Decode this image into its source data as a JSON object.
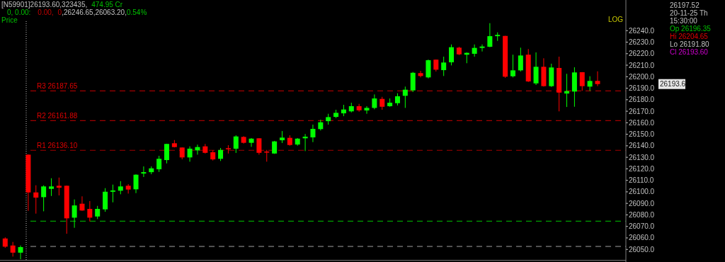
{
  "chart_data": {
    "type": "candlestick",
    "categories": [
      null,
      null,
      null,
      null,
      null,
      null,
      null,
      null,
      null,
      null,
      null,
      null,
      null,
      null,
      null,
      null,
      null,
      null,
      null,
      null,
      null,
      null,
      null,
      null,
      null,
      null,
      null,
      null,
      null,
      null,
      null,
      null,
      null,
      null,
      null,
      null,
      null,
      null,
      null,
      null,
      null,
      null,
      null,
      null,
      null,
      null,
      null,
      null,
      null,
      null,
      null,
      null,
      null,
      null,
      null,
      null,
      null,
      null,
      null,
      null,
      null,
      null,
      null,
      null,
      null,
      null,
      null,
      null,
      null,
      null,
      null,
      null,
      null,
      null,
      null,
      null,
      null,
      null
    ],
    "ohlc": [
      [
        26059.5,
        26060.5,
        26051.4,
        26052.4
      ],
      [
        26053.4,
        26056.5,
        26043.8,
        26047.2
      ],
      [
        26047.2,
        26053.4,
        26041.5,
        26052.0
      ],
      [
        26132.3,
        26132.5,
        26083.5,
        26099.5
      ],
      [
        26099.5,
        26105.7,
        26081.1,
        26095.0
      ],
      [
        26095.4,
        26105.7,
        26083.1,
        26104.7
      ],
      [
        26102.6,
        26111.8,
        26096.4,
        26104.7
      ],
      [
        26105.3,
        26112.4,
        26096.9,
        26103.6
      ],
      [
        26105.3,
        26105.5,
        26063.6,
        26077.0
      ],
      [
        26077.6,
        26093.4,
        26068.8,
        26088.2
      ],
      [
        26089.7,
        26096.1,
        26083.5,
        26083.8
      ],
      [
        26085.2,
        26092.0,
        26074.3,
        26077.6
      ],
      [
        26078.6,
        26087.8,
        26076.4,
        26085.2
      ],
      [
        26084.8,
        26103.2,
        26082.7,
        26100.1
      ],
      [
        26100.1,
        26106.3,
        26090.9,
        26101.2
      ],
      [
        26101.0,
        26109.3,
        26097.9,
        26104.7
      ],
      [
        26105.3,
        26106.7,
        26098.5,
        26102.0
      ],
      [
        26102.2,
        26115.2,
        26098.9,
        26114.9
      ],
      [
        26115.9,
        26122.1,
        26112.9,
        26117.1
      ],
      [
        26117.1,
        26122.1,
        26115.3,
        26120.4
      ],
      [
        26119.6,
        26131.3,
        26117.3,
        26128.7
      ],
      [
        26127.6,
        26141.8,
        26124.7,
        26141.6
      ],
      [
        26142.2,
        26145.0,
        26138.6,
        26138.9
      ],
      [
        26138.5,
        26138.6,
        26128.2,
        26129.9
      ],
      [
        26129.9,
        26139.5,
        26126.2,
        26137.5
      ],
      [
        26136.0,
        26141.0,
        26132.3,
        26138.9
      ],
      [
        26139.5,
        26141.6,
        26133.3,
        26133.9
      ],
      [
        26134.4,
        26136.0,
        26127.2,
        26128.2
      ],
      [
        26128.7,
        26138.1,
        26126.8,
        26136.4
      ],
      [
        26137.9,
        26140.5,
        26133.3,
        26137.0
      ],
      [
        26137.5,
        26149.1,
        26133.8,
        26148.1
      ],
      [
        26147.7,
        26148.3,
        26141.9,
        26142.6
      ],
      [
        26142.6,
        26146.7,
        26139.1,
        26146.2
      ],
      [
        26146.5,
        26146.6,
        26132.3,
        26133.9
      ],
      [
        26135.0,
        26136.4,
        26126.2,
        26134.2
      ],
      [
        26133.3,
        26144.2,
        26133.0,
        26143.8
      ],
      [
        26144.8,
        26152.8,
        26142.4,
        26147.1
      ],
      [
        26146.9,
        26149.1,
        26140.1,
        26140.7
      ],
      [
        26141.1,
        26146.7,
        26140.1,
        26146.2
      ],
      [
        26146.5,
        26150.2,
        26135.4,
        26147.9
      ],
      [
        26147.3,
        26158.4,
        26143.2,
        26154.7
      ],
      [
        26154.5,
        26162.7,
        26153.3,
        26160.4
      ],
      [
        26161.4,
        26167.8,
        26158.4,
        26164.9
      ],
      [
        26165.1,
        26171.3,
        26164.1,
        26168.6
      ],
      [
        26168.2,
        26175.6,
        26165.7,
        26171.5
      ],
      [
        26169.9,
        26177.4,
        26169.0,
        26174.4
      ],
      [
        26174.4,
        26176.4,
        26169.6,
        26170.8
      ],
      [
        26170.7,
        26174.4,
        26167.8,
        26172.9
      ],
      [
        26172.9,
        26184.6,
        26171.7,
        26181.1
      ],
      [
        26180.7,
        26182.5,
        26171.3,
        26173.9
      ],
      [
        26174.4,
        26181.1,
        26173.9,
        26177.4
      ],
      [
        26177.0,
        26185.6,
        26175.0,
        26183.0
      ],
      [
        26183.4,
        26191.4,
        26172.9,
        26188.7
      ],
      [
        26188.1,
        26204.1,
        26186.7,
        26203.4
      ],
      [
        26203.1,
        26205.1,
        26199.4,
        26200.6
      ],
      [
        26199.4,
        26214.9,
        26198.5,
        26214.3
      ],
      [
        26214.8,
        26214.9,
        26204.5,
        26206.1
      ],
      [
        26205.7,
        26217.4,
        26200.6,
        26212.3
      ],
      [
        26212.5,
        26228.0,
        26209.8,
        26225.6
      ],
      [
        26225.2,
        26226.0,
        26218.8,
        26219.4
      ],
      [
        26219.1,
        26221.1,
        26211.7,
        26220.7
      ],
      [
        26219.9,
        26228.0,
        26217.4,
        26225.0
      ],
      [
        26225.0,
        26228.0,
        26221.9,
        26226.2
      ],
      [
        26226.0,
        26246.5,
        26225.6,
        26235.2
      ],
      [
        26235.2,
        26238.5,
        26231.1,
        26236.3
      ],
      [
        26235.4,
        26235.5,
        26199.0,
        26200.0
      ],
      [
        26200.4,
        26219.1,
        26199.4,
        26205.5
      ],
      [
        26205.5,
        26225.2,
        26204.5,
        26218.4
      ],
      [
        26219.1,
        26224.0,
        26195.4,
        26195.9
      ],
      [
        26194.2,
        26221.1,
        26192.8,
        26208.6
      ],
      [
        26208.6,
        26216.0,
        26191.4,
        26191.8
      ],
      [
        26191.8,
        26211.3,
        26191.1,
        26208.0
      ],
      [
        26207.6,
        26217.4,
        26169.9,
        26186.2
      ],
      [
        26185.4,
        26202.5,
        26173.7,
        26187.5
      ],
      [
        26187.1,
        26208.2,
        26173.9,
        26203.7
      ],
      [
        26203.9,
        26204.0,
        26187.7,
        26191.8
      ],
      [
        26191.4,
        26200.4,
        26187.7,
        26196.3
      ],
      [
        26196.35,
        26204.65,
        26191.8,
        26193.6
      ]
    ],
    "colors": [
      "#ff0000",
      "#ff0000",
      "#00ff00",
      "#ff0000",
      "#ff0000",
      "#00ff00",
      "#00ff00",
      "#ff0000",
      "#ff0000",
      "#00ff00",
      "#ff0000",
      "#ff0000",
      "#00ff00",
      "#00ff00",
      "#00ff00",
      "#00ff00",
      "#ff0000",
      "#00ff00",
      "#00ff00",
      "#00ff00",
      "#00ff00",
      "#00ff00",
      "#ff0000",
      "#ff0000",
      "#00ff00",
      "#00ff00",
      "#ff0000",
      "#ff0000",
      "#00ff00",
      "#ff0000",
      "#00ff00",
      "#ff0000",
      "#00ff00",
      "#ff0000",
      "#ff0000",
      "#00ff00",
      "#00ff00",
      "#ff0000",
      "#00ff00",
      "#00ff00",
      "#00ff00",
      "#00ff00",
      "#00ff00",
      "#00ff00",
      "#00ff00",
      "#00ff00",
      "#ff0000",
      "#00ff00",
      "#00ff00",
      "#ff0000",
      "#00ff00",
      "#00ff00",
      "#00ff00",
      "#00ff00",
      "#ff0000",
      "#00ff00",
      "#ff0000",
      "#00ff00",
      "#00ff00",
      "#ff0000",
      "#00ff00",
      "#00ff00",
      "#00ff00",
      "#00ff00",
      "#00ff00",
      "#ff0000",
      "#00ff00",
      "#00ff00",
      "#ff0000",
      "#00ff00",
      "#ff0000",
      "#00ff00",
      "#ff0000",
      "#00ff00",
      "#00ff00",
      "#ff0000",
      "#00ff00",
      "#ff0000"
    ],
    "ylim": [
      26040.5,
      26266.6
    ],
    "yticks": [
      {
        "value": 26050,
        "label": "26050.0"
      },
      {
        "value": 26060,
        "label": "26060.0"
      },
      {
        "value": 26070,
        "label": "26070.0"
      },
      {
        "value": 26080,
        "label": "26080.0"
      },
      {
        "value": 26090,
        "label": "26090.0"
      },
      {
        "value": 26100,
        "label": "26100.0"
      },
      {
        "value": 26110,
        "label": "26110.0"
      },
      {
        "value": 26120,
        "label": "26120.0"
      },
      {
        "value": 26130,
        "label": "26130.0"
      },
      {
        "value": 26140,
        "label": "26140.0"
      },
      {
        "value": 26150,
        "label": "26150.0"
      },
      {
        "value": 26160,
        "label": "26160.0"
      },
      {
        "value": 26170,
        "label": "26170.0"
      },
      {
        "value": 26180,
        "label": "26180.0"
      },
      {
        "value": 26190,
        "label": "26190.0"
      },
      {
        "value": 26200,
        "label": "26200.0"
      },
      {
        "value": 26210,
        "label": "26210.0"
      },
      {
        "value": 26220,
        "label": "26220.0"
      },
      {
        "value": 26230,
        "label": "26230.0"
      },
      {
        "value": 26240,
        "label": "26240.0"
      }
    ],
    "ref_lines": [
      {
        "axis": "y",
        "value": 26187.65,
        "label": "R3 26187.65",
        "color": "#a00000",
        "line_style": "dashed"
      },
      {
        "axis": "y",
        "value": 26161.88,
        "label": "R2 26161.88",
        "color": "#a00000",
        "line_style": "dashed"
      },
      {
        "axis": "y",
        "value": 26136.1,
        "label": "R1 26136.10",
        "color": "#a00000",
        "line_style": "dashed"
      },
      {
        "axis": "y",
        "value": 26074.5,
        "color": "#00a000",
        "line_style": "dashed"
      },
      {
        "axis": "y",
        "value": 26052.6,
        "color": "#a0a0a0",
        "line_style": "dashed"
      }
    ],
    "annotations": [
      "[N59901]26193.60,323435,",
      "474.95  Cr",
      "0,   0.00:",
      "0.00,",
      "0",
      ",26246.65,26063.20,",
      "0.54%",
      "Price",
      "LOG",
      "26197.52",
      "20-11-25 Th",
      "15:30:00",
      "Op 26196.35",
      "Hi 26204.65",
      "Lo 26191.80",
      "Cl 26193.60",
      "26193.6"
    ]
  }
}
